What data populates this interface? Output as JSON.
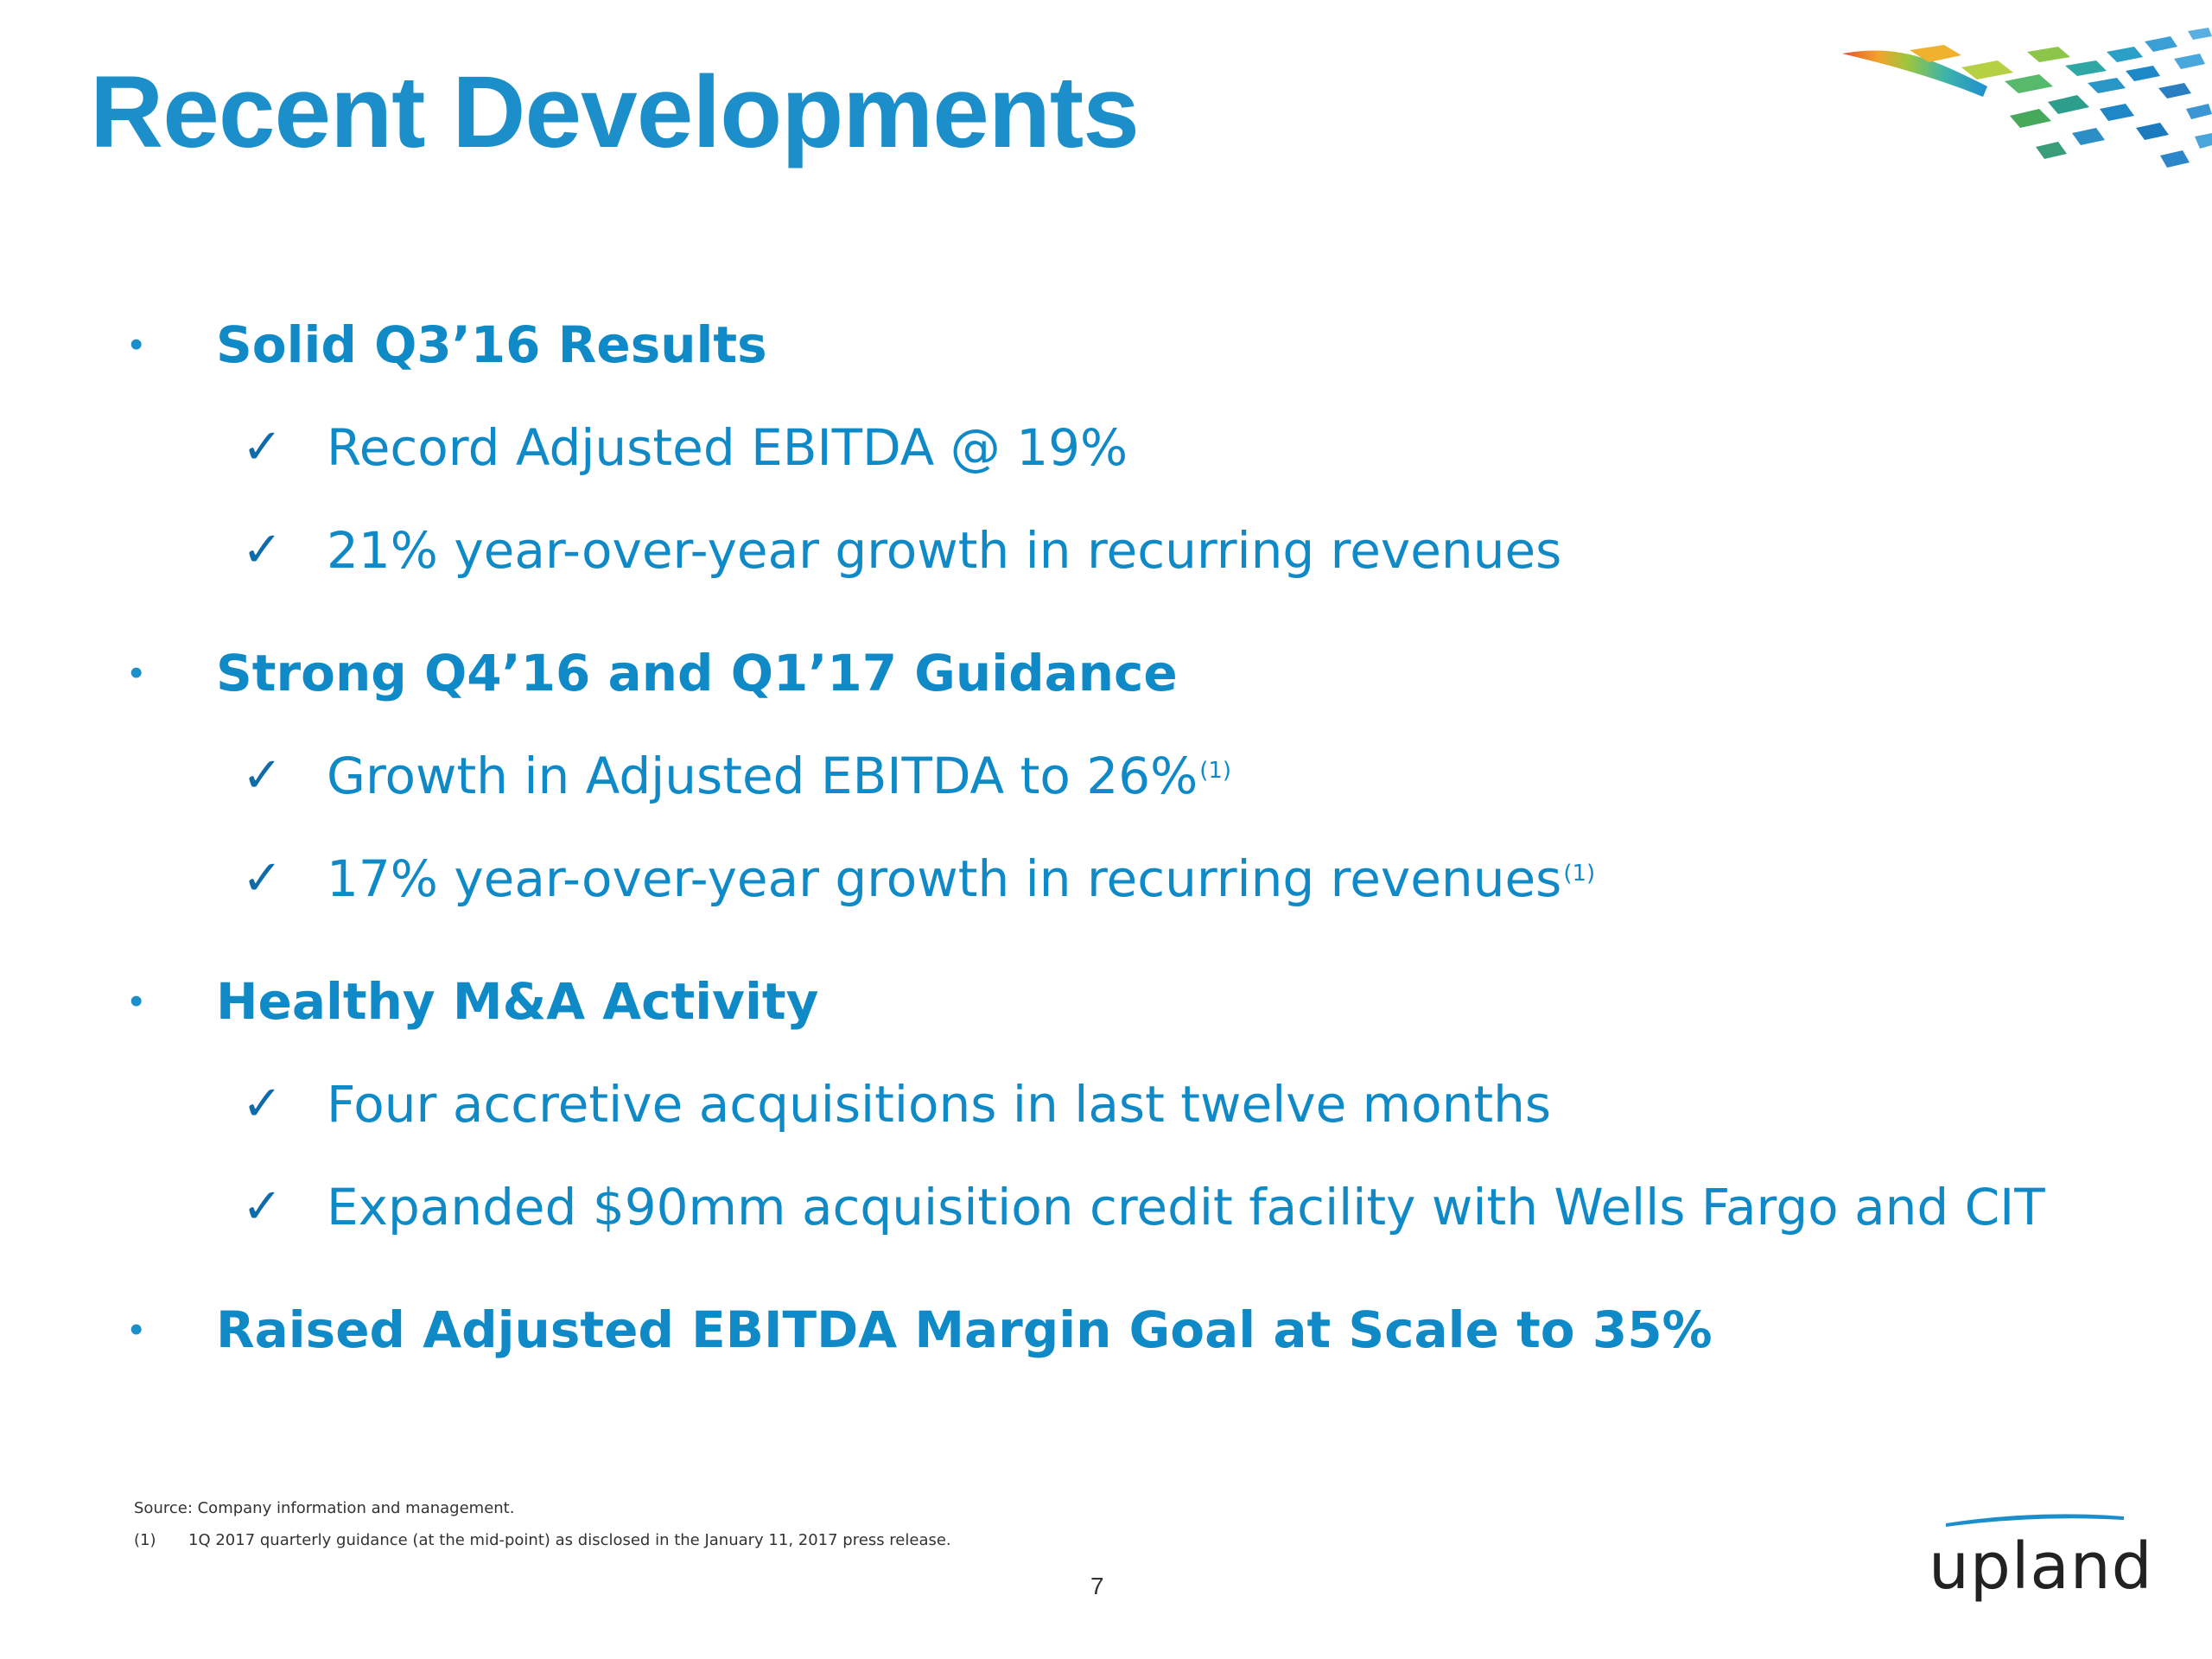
{
  "title": "Recent Developments",
  "sections": [
    {
      "bullet": "Solid Q3’16 Results",
      "items": [
        {
          "text": "Record Adjusted EBITDA @ 19%",
          "sup": ""
        },
        {
          "text": "21% year-over-year growth in recurring revenues",
          "sup": ""
        }
      ]
    },
    {
      "bullet": "Strong Q4’16 and Q1’17 Guidance",
      "items": [
        {
          "text": "Growth in Adjusted EBITDA to 26%",
          "sup": "(1)"
        },
        {
          "text": "17% year-over-year growth in recurring revenues",
          "sup": "(1)"
        }
      ]
    },
    {
      "bullet": "Healthy M&A Activity",
      "items": [
        {
          "text": "Four accretive acquisitions in last twelve months",
          "sup": ""
        },
        {
          "text": "Expanded $90mm acquisition credit facility with Wells Fargo and CIT",
          "sup": ""
        }
      ]
    },
    {
      "bullet": "Raised Adjusted EBITDA Margin Goal at Scale to 35%",
      "items": []
    }
  ],
  "footnotes": {
    "source": "Source: Company information and management.",
    "note_number": "(1)",
    "note_text": "1Q 2017 quarterly guidance (at the mid-point) as disclosed in the January 11, 2017 press release."
  },
  "page_number": "7",
  "brand": {
    "wordmark": "upland",
    "icon": "upland-mosaic-logo-icon"
  },
  "colors": {
    "title": "#1c8fcb",
    "text": "#0f8ac7",
    "checkmark": "#0f6ca8"
  }
}
